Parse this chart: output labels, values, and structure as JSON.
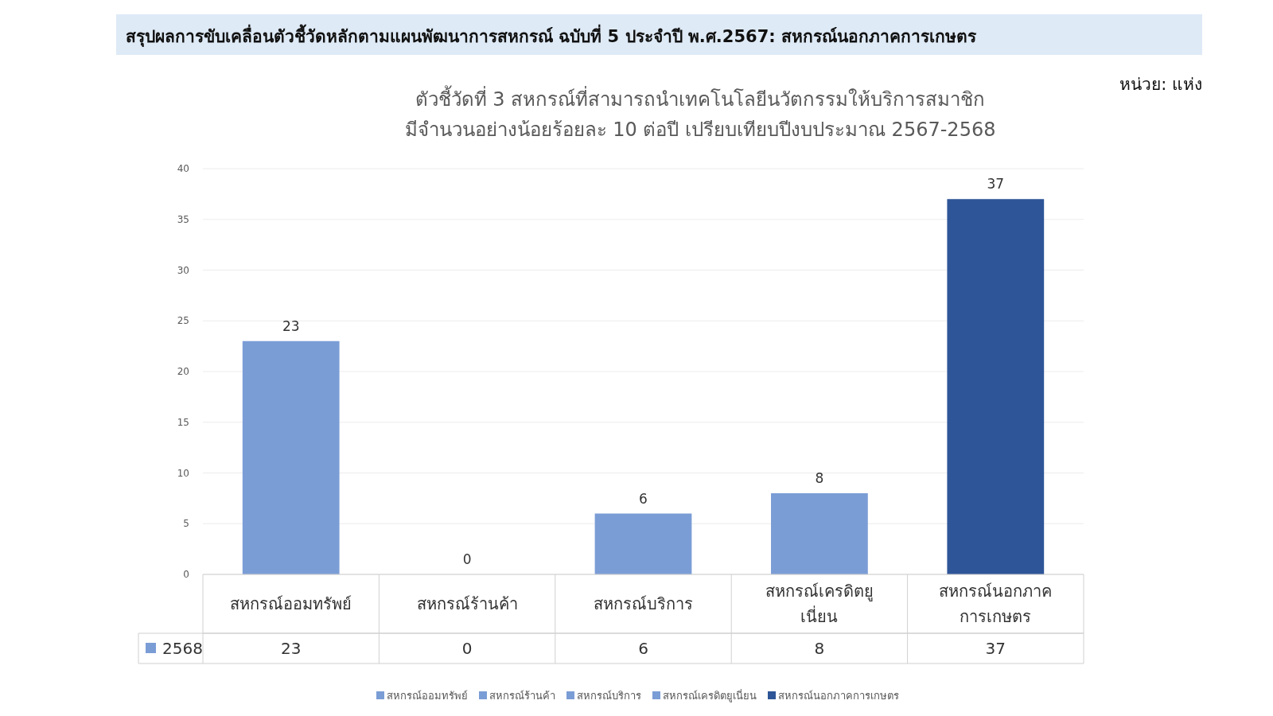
{
  "chart_data": {
    "type": "bar",
    "title": "สรุปผลการขับเคลื่อนตัวชี้วัดหลักตามแผนพัฒนาการสหกรณ์ ฉบับที่ 5 ประจำปี พ.ศ.2567: สหกรณ์นอกภาคการเกษตร",
    "subtitle": "ตัวชี้วัดที่ 3 สหกรณ์ที่สามารถนำเทคโนโลยีนวัตกรรมให้บริการสมาชิก\nมีจำนวนอย่างน้อยร้อยละ 10 ต่อปี เปรียบเทียบปีงบประมาณ 2567-2568",
    "annotations": [
      "หน่วย: แห่ง",
      "23",
      "0",
      "6",
      "8",
      "37"
    ],
    "categories": [
      "สหกรณ์ออมทรัพย์",
      "สหกรณ์ร้านค้า",
      "สหกรณ์บริการ",
      "สหกรณ์เครดิตยูเนี่ยน",
      "สหกรณ์นอกภาคการเกษตร"
    ],
    "series": [
      {
        "name": "2568",
        "values": [
          23,
          0,
          6,
          8,
          37
        ],
        "colors": [
          "#7b9dd6",
          "#7b9dd6",
          "#7b9dd6",
          "#7b9dd6",
          "#2e5597"
        ]
      }
    ],
    "ylim": [
      0,
      40
    ],
    "yticks": [
      0,
      5,
      10,
      15,
      20,
      25,
      30,
      35,
      40
    ],
    "grid": "y",
    "data_labels": true,
    "legend": "bottom"
  }
}
